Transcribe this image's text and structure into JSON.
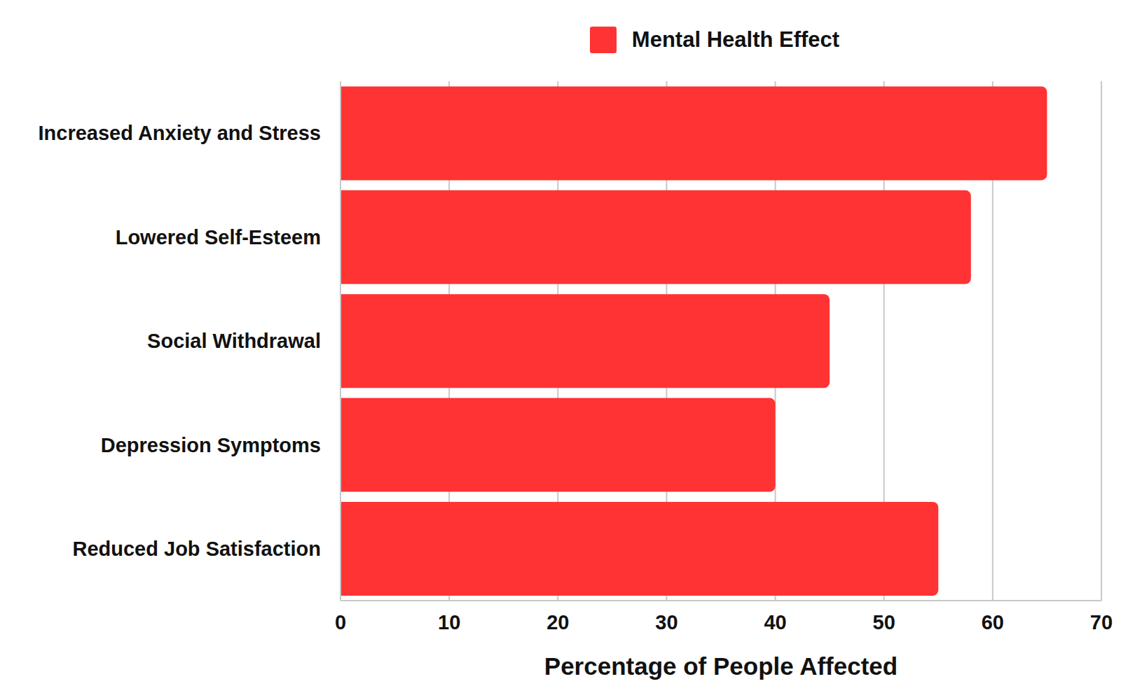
{
  "chart_data": {
    "type": "bar",
    "orientation": "horizontal",
    "categories": [
      "Increased Anxiety and Stress",
      "Lowered Self-Esteem",
      "Social Withdrawal",
      "Depression Symptoms",
      "Reduced Job Satisfaction"
    ],
    "series": [
      {
        "name": "Mental Health Effect",
        "color": "#ff3333",
        "values": [
          65,
          58,
          45,
          40,
          55
        ]
      }
    ],
    "xlabel": "Percentage of People Affected",
    "xlim": [
      0,
      70
    ],
    "xticks": [
      0,
      10,
      20,
      30,
      40,
      50,
      60,
      70
    ],
    "grid": true,
    "legend": "top"
  }
}
